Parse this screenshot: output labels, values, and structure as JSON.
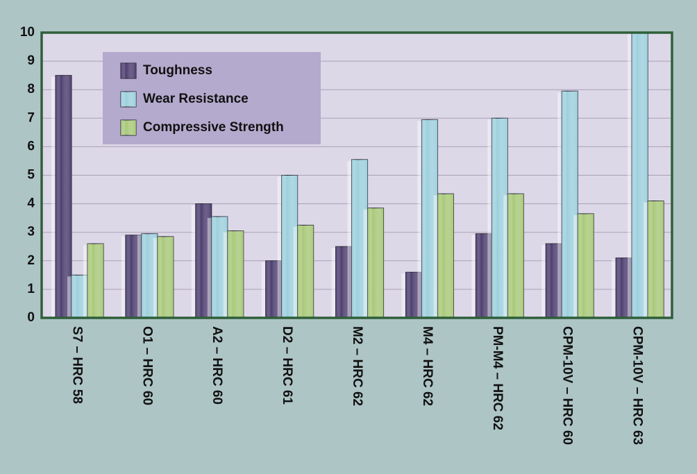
{
  "chart_data": {
    "type": "bar",
    "categories": [
      "S7 – HRC 58",
      "O1 – HRC 60",
      "A2 – HRC 60",
      "D2 – HRC 61",
      "M2 – HRC 62",
      "M4 – HRC 62",
      "PM-M4 – HRC 62",
      "CPM-10V – HRC 60",
      "CPM-10V – HRC 63"
    ],
    "series": [
      {
        "name": "Toughness",
        "color": "#4c3d6e",
        "values": [
          8.5,
          2.9,
          4.0,
          2.0,
          2.5,
          1.6,
          2.95,
          2.6,
          2.1
        ]
      },
      {
        "name": "Wear Resistance",
        "color": "#9ccfdc",
        "values": [
          1.5,
          2.95,
          3.55,
          5.0,
          5.55,
          6.95,
          7.0,
          7.95,
          10
        ]
      },
      {
        "name": "Compressive Strength",
        "color": "#a8c878",
        "values": [
          2.6,
          2.85,
          3.05,
          3.25,
          3.85,
          4.35,
          4.35,
          3.65,
          4.1
        ]
      }
    ],
    "ylim": [
      0,
      10
    ],
    "yticks": [
      0,
      1,
      2,
      3,
      4,
      5,
      6,
      7,
      8,
      9,
      10
    ],
    "grid": true
  }
}
